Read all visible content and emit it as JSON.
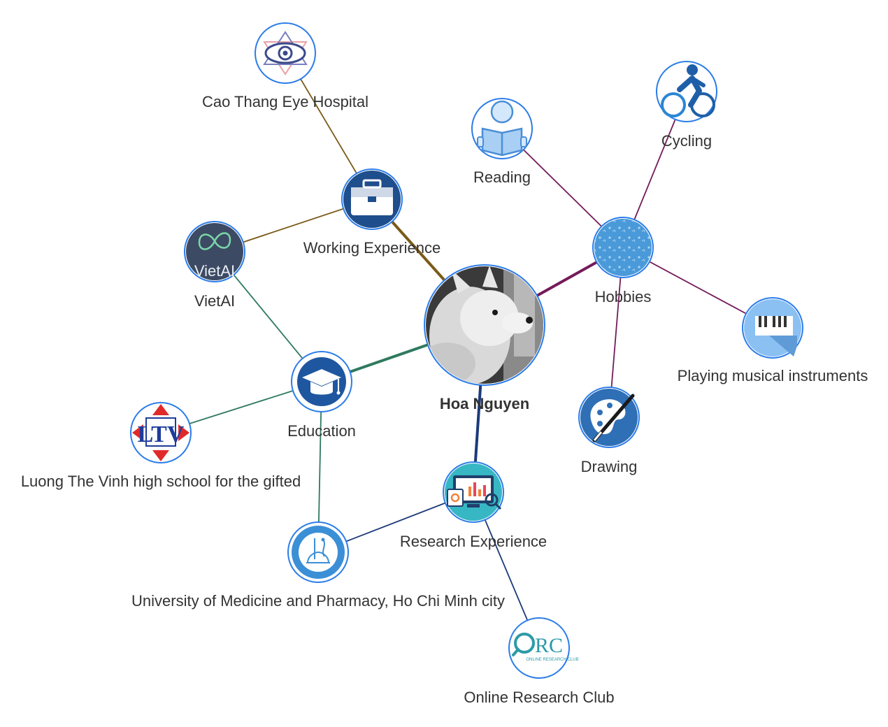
{
  "graph": {
    "center": {
      "id": "me",
      "label": "Hoa Nguyen",
      "icon": "dog-photo"
    },
    "groups": [
      {
        "id": "work",
        "label": "Working Experience",
        "icon": "briefcase-icon",
        "color": "#7a5a18",
        "children": [
          {
            "id": "caothang",
            "label": "Cao Thang Eye Hospital",
            "icon": "eye-logo"
          },
          {
            "id": "vietai",
            "label": "VietAI",
            "icon": "vietai-logo"
          }
        ]
      },
      {
        "id": "hobbies",
        "label": "Hobbies",
        "icon": "doodle-pattern-icon",
        "color": "#741b5a",
        "children": [
          {
            "id": "reading",
            "label": "Reading",
            "icon": "reading-icon"
          },
          {
            "id": "cycling",
            "label": "Cycling",
            "icon": "cycling-icon"
          },
          {
            "id": "music",
            "label": "Playing musical instruments",
            "icon": "piano-icon"
          },
          {
            "id": "drawing",
            "label": "Drawing",
            "icon": "palette-icon"
          }
        ]
      },
      {
        "id": "edu",
        "label": "Education",
        "icon": "graduation-cap-icon",
        "color": "#2e7a5e",
        "children": [
          {
            "id": "vietai2",
            "ref": "vietai"
          },
          {
            "id": "ltv",
            "label": "Luong The Vinh high school for the gifted",
            "icon": "ltv-logo"
          },
          {
            "id": "ump",
            "label": "University of Medicine and Pharmacy, Ho Chi Minh city",
            "icon": "ump-logo"
          }
        ]
      },
      {
        "id": "research",
        "label": "Research Experience",
        "icon": "analytics-icon",
        "color": "#1c3a7a",
        "children": [
          {
            "id": "ump2",
            "ref": "ump"
          },
          {
            "id": "orc",
            "label": "Online Research Club",
            "icon": "orc-logo"
          }
        ]
      }
    ]
  }
}
